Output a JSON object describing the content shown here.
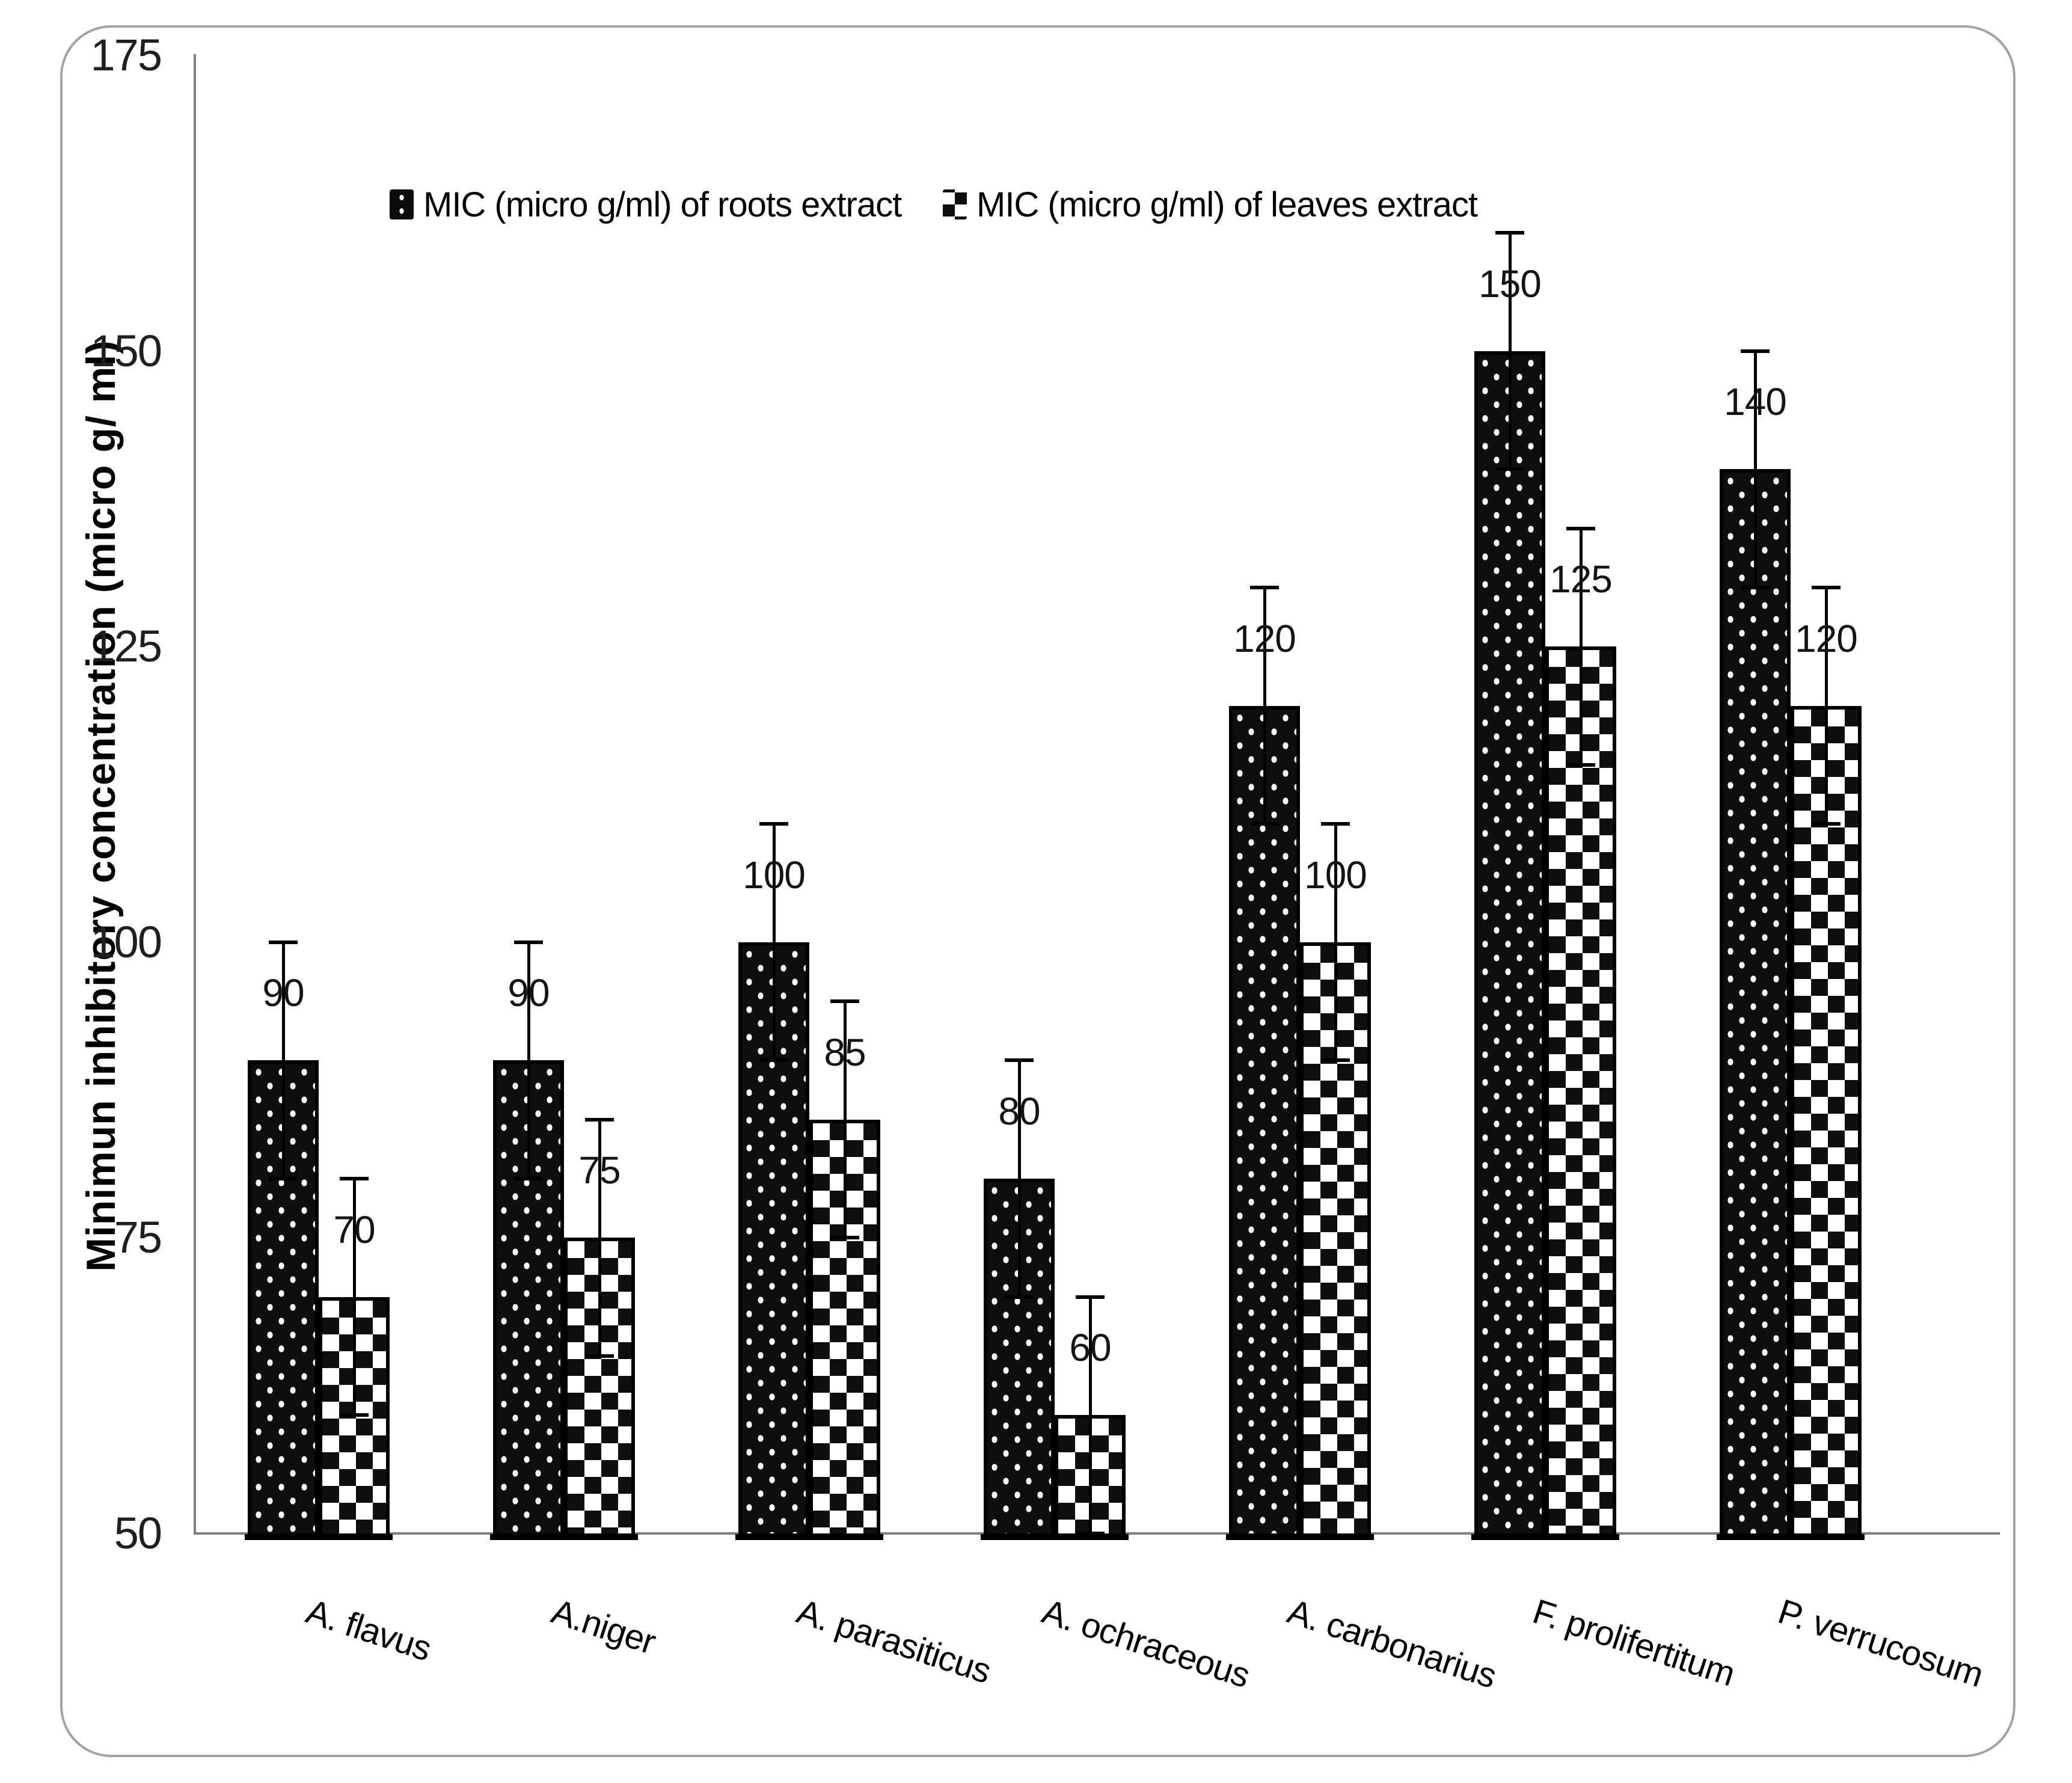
{
  "chart_data": {
    "type": "bar",
    "title": "",
    "xlabel": "",
    "ylabel": "Minimun inhibitory concentration (micro g/ ml)",
    "ylim": [
      50,
      175
    ],
    "yticks": [
      175,
      150,
      125,
      100,
      75,
      50
    ],
    "grid": false,
    "legend_position": "top",
    "categories": [
      "A. flavus",
      "A.niger",
      "A. parasiticus",
      "A. ochraceous",
      "A. carbonarius",
      "F. prolifertitum",
      "P. verrucosum"
    ],
    "series": [
      {
        "name": "MIC (micro g/ml) of roots extract",
        "pattern": "white-dots-on-black",
        "values": [
          90,
          90,
          100,
          80,
          120,
          150,
          140
        ],
        "error": 10
      },
      {
        "name": "MIC (micro g/ml) of leaves extract",
        "pattern": "black-white-checker",
        "values": [
          70,
          75,
          85,
          60,
          100,
          125,
          120
        ],
        "error": 10
      }
    ],
    "colors": {
      "bar_fill": "#0e0e0e",
      "bar_border": "#000000",
      "axis": "#7f7f7f",
      "frame_border": "#a3a3a3",
      "text": "#111111"
    }
  }
}
